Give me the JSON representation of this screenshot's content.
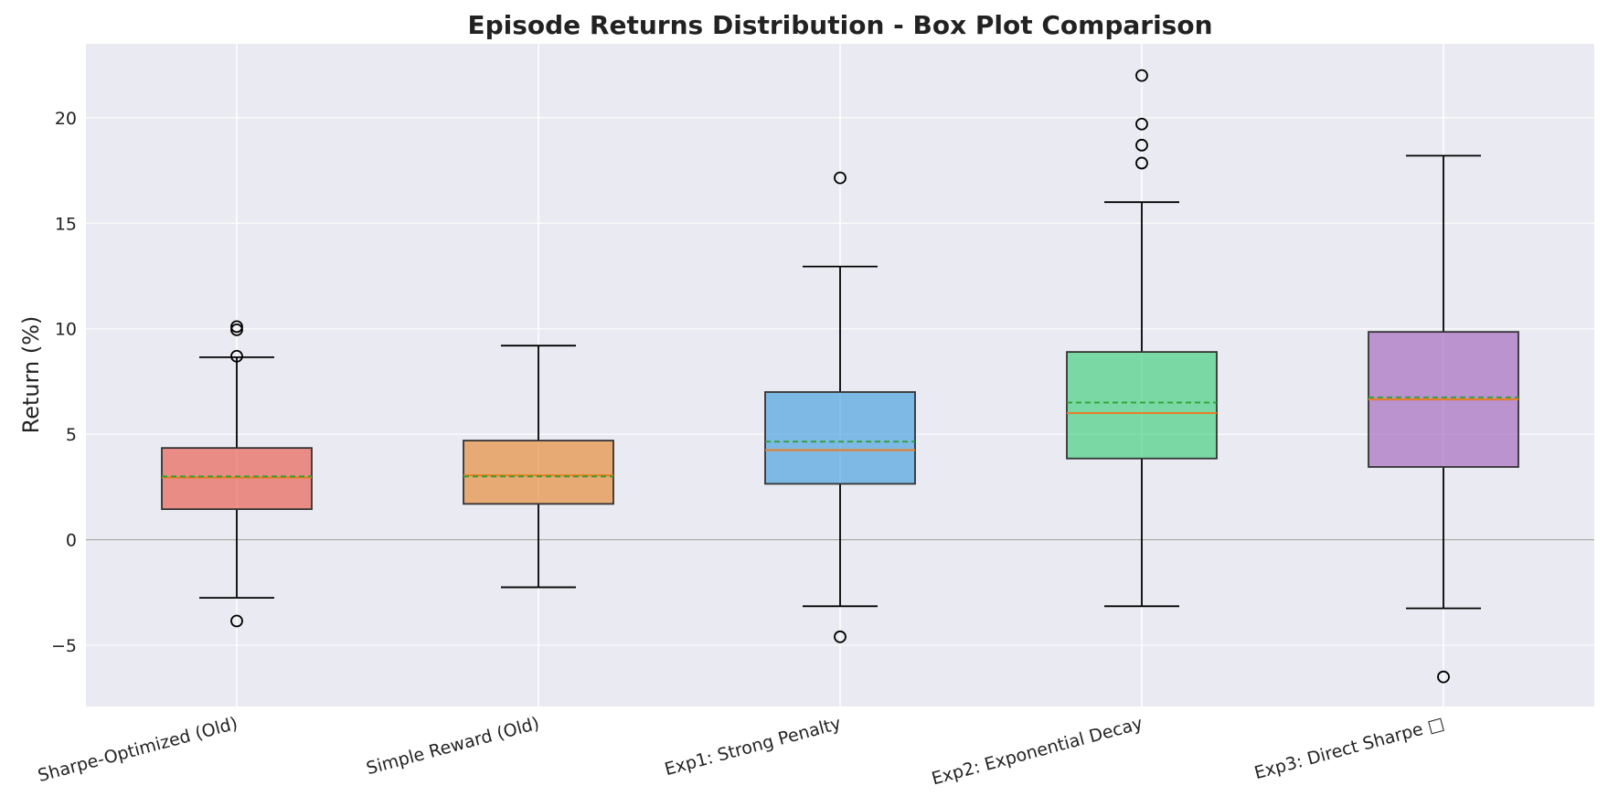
{
  "chart_data": {
    "type": "box",
    "title": "Episode Returns Distribution - Box Plot Comparison",
    "xlabel": "",
    "ylabel": "Return (%)",
    "ylim": [
      -7.9,
      23.5
    ],
    "yticks": [
      -5,
      0,
      5,
      10,
      15,
      20
    ],
    "ytick_labels": [
      "−5",
      "0",
      "5",
      "10",
      "15",
      "20"
    ],
    "grid": true,
    "zero_line": true,
    "categories": [
      "Sharpe-Optimized (Old)",
      "Simple Reward (Old)",
      "Exp1: Strong Penalty",
      "Exp2: Exponential Decay",
      "Exp3: Direct Sharpe □"
    ],
    "boxes": [
      {
        "color": "#e74c3c",
        "whisker_low": -2.75,
        "q1": 1.45,
        "median": 2.95,
        "mean": 3.0,
        "q3": 4.35,
        "whisker_high": 8.65,
        "outliers": [
          -3.85,
          8.7,
          9.95,
          10.1
        ]
      },
      {
        "color": "#e67e22",
        "whisker_low": -2.25,
        "q1": 1.7,
        "median": 3.05,
        "mean": 3.0,
        "q3": 4.7,
        "whisker_high": 9.2,
        "outliers": []
      },
      {
        "color": "#3498db",
        "whisker_low": -3.15,
        "q1": 2.65,
        "median": 4.25,
        "mean": 4.65,
        "q3": 7.0,
        "whisker_high": 12.95,
        "outliers": [
          -4.6,
          17.15
        ]
      },
      {
        "color": "#2ecc71",
        "whisker_low": -3.15,
        "q1": 3.85,
        "median": 6.0,
        "mean": 6.5,
        "q3": 8.9,
        "whisker_high": 16.0,
        "outliers": [
          17.85,
          18.7,
          19.7,
          22.0
        ]
      },
      {
        "color": "#9b59b6",
        "whisker_low": -3.25,
        "q1": 3.45,
        "median": 6.65,
        "mean": 6.75,
        "q3": 9.85,
        "whisker_high": 18.2,
        "outliers": [
          -6.5
        ]
      }
    ],
    "median_color": "#e67e22",
    "mean_color": "#2ca02c",
    "background": "#eaeaf2"
  }
}
